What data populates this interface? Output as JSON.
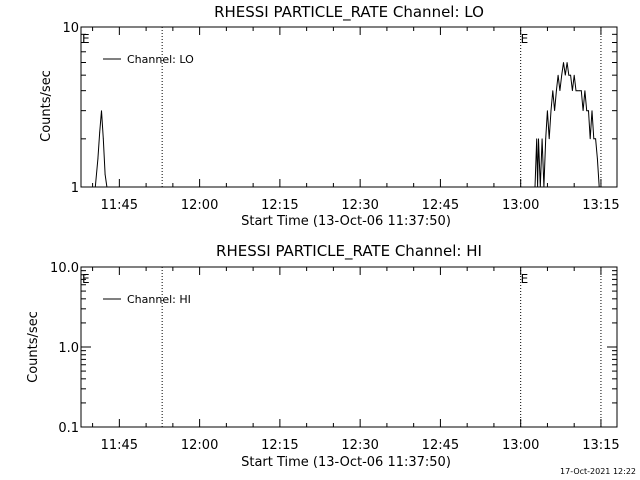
{
  "footer_date": "17-Oct-2021 12:22",
  "chart_data": [
    {
      "type": "line",
      "title": "RHESSI PARTICLE_RATE Channel: LO",
      "xlabel": "Start Time (13-Oct-06 11:37:50)",
      "ylabel": "Counts/sec",
      "y_scale": "log",
      "ylim": [
        1,
        10
      ],
      "y_ticks": [
        {
          "value": 1,
          "label": "1"
        },
        {
          "value": 10,
          "label": "10"
        }
      ],
      "xlim": [
        "11:37:50",
        "13:18:00"
      ],
      "x_ticks": [
        "11:45",
        "12:00",
        "12:15",
        "12:30",
        "12:45",
        "13:00",
        "13:15"
      ],
      "vlines": [
        "11:53:00",
        "13:00:00",
        "13:15:00"
      ],
      "markers": [
        {
          "label": "E",
          "x": "11:37:50"
        },
        {
          "label": "E",
          "x": "13:00:00"
        }
      ],
      "legend": {
        "label": "Channel: LO",
        "position": "top-left"
      },
      "series": [
        {
          "name": "Channel: LO",
          "points": [
            [
              "11:40:30",
              1.0
            ],
            [
              "11:41:00",
              1.5
            ],
            [
              "11:41:20",
              2.2
            ],
            [
              "11:41:40",
              3.0
            ],
            [
              "11:42:00",
              2.0
            ],
            [
              "11:42:20",
              1.2
            ],
            [
              "11:42:40",
              1.0
            ],
            [
              "13:02:40",
              1.0
            ],
            [
              "13:03:00",
              2.0
            ],
            [
              "13:03:10",
              1.0
            ],
            [
              "13:03:20",
              2.0
            ],
            [
              "13:03:40",
              1.0
            ],
            [
              "13:04:00",
              2.0
            ],
            [
              "13:04:20",
              1.0
            ],
            [
              "13:04:40",
              2.0
            ],
            [
              "13:05:00",
              3.0
            ],
            [
              "13:05:20",
              2.0
            ],
            [
              "13:05:40",
              3.0
            ],
            [
              "13:06:00",
              4.0
            ],
            [
              "13:06:20",
              3.0
            ],
            [
              "13:06:40",
              4.0
            ],
            [
              "13:07:00",
              5.0
            ],
            [
              "13:07:20",
              4.0
            ],
            [
              "13:07:40",
              5.0
            ],
            [
              "13:08:00",
              6.0
            ],
            [
              "13:08:20",
              5.0
            ],
            [
              "13:08:40",
              6.0
            ],
            [
              "13:09:00",
              5.0
            ],
            [
              "13:09:20",
              5.0
            ],
            [
              "13:09:40",
              4.0
            ],
            [
              "13:10:00",
              5.0
            ],
            [
              "13:10:20",
              4.0
            ],
            [
              "13:10:40",
              4.0
            ],
            [
              "13:11:00",
              4.0
            ],
            [
              "13:11:20",
              4.0
            ],
            [
              "13:11:40",
              3.0
            ],
            [
              "13:12:00",
              4.0
            ],
            [
              "13:12:20",
              3.0
            ],
            [
              "13:12:40",
              3.0
            ],
            [
              "13:13:00",
              2.0
            ],
            [
              "13:13:20",
              3.0
            ],
            [
              "13:13:40",
              2.0
            ],
            [
              "13:14:00",
              2.0
            ],
            [
              "13:14:20",
              1.5
            ],
            [
              "13:14:40",
              1.0
            ]
          ]
        }
      ]
    },
    {
      "type": "line",
      "title": "RHESSI PARTICLE_RATE Channel: HI",
      "xlabel": "Start Time (13-Oct-06 11:37:50)",
      "ylabel": "Counts/sec",
      "y_scale": "log",
      "ylim": [
        0.1,
        10
      ],
      "y_ticks": [
        {
          "value": 0.1,
          "label": "0.1"
        },
        {
          "value": 1,
          "label": "1.0"
        },
        {
          "value": 10,
          "label": "10.0"
        }
      ],
      "xlim": [
        "11:37:50",
        "13:18:00"
      ],
      "x_ticks": [
        "11:45",
        "12:00",
        "12:15",
        "12:30",
        "12:45",
        "13:00",
        "13:15"
      ],
      "vlines": [
        "11:53:00",
        "13:00:00",
        "13:15:00"
      ],
      "markers": [
        {
          "label": "E",
          "x": "11:37:50"
        },
        {
          "label": "E",
          "x": "13:00:00"
        }
      ],
      "legend": {
        "label": "Channel: HI",
        "position": "top-left"
      },
      "series": [
        {
          "name": "Channel: HI",
          "points": []
        }
      ]
    }
  ]
}
